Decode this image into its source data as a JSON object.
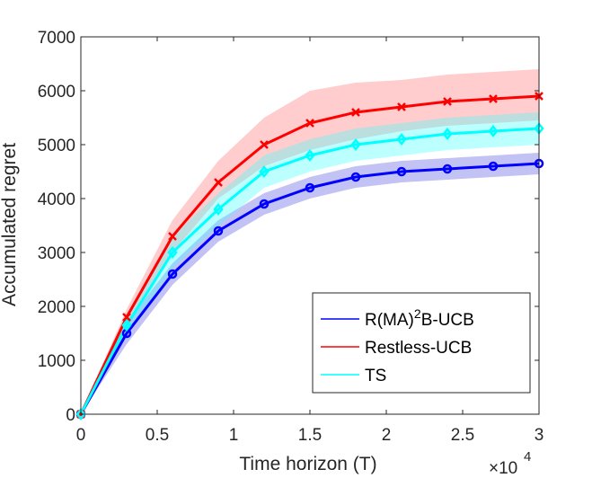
{
  "chart_data": {
    "type": "line",
    "xlabel": "Time horizon (T)",
    "ylabel": "Accumulated regret",
    "x_exponent_base": "×10",
    "x_exponent_power": "4",
    "x_ticks": [
      "0",
      "0.5",
      "1",
      "1.5",
      "2",
      "2.5",
      "3"
    ],
    "y_ticks": [
      "0",
      "1000",
      "2000",
      "3000",
      "4000",
      "5000",
      "6000",
      "7000"
    ],
    "xlim": [
      0,
      30000
    ],
    "ylim": [
      0,
      7000
    ],
    "grid": false,
    "legend_position": "bottom-right",
    "x": [
      0,
      3000,
      6000,
      9000,
      12000,
      15000,
      18000,
      21000,
      24000,
      27000,
      30000
    ],
    "series": [
      {
        "name": "R(MA)²B-UCB",
        "legend_main": "R(MA)",
        "legend_sup": "2",
        "legend_tail": "B-UCB",
        "color": "#0000ff",
        "band_color": "#5050e0",
        "marker": "circle",
        "values": [
          0,
          1500,
          2600,
          3400,
          3900,
          4200,
          4400,
          4500,
          4550,
          4600,
          4650
        ],
        "lower": [
          0,
          1300,
          2400,
          3200,
          3700,
          4000,
          4200,
          4300,
          4350,
          4400,
          4450
        ],
        "upper": [
          0,
          1700,
          2800,
          3600,
          4100,
          4400,
          4600,
          4700,
          4750,
          4800,
          4850
        ]
      },
      {
        "name": "Restless-UCB",
        "legend_main": "Restless-UCB",
        "color": "#ff0000",
        "band_color": "#ff7070",
        "marker": "x",
        "values": [
          0,
          1800,
          3300,
          4300,
          5000,
          5400,
          5600,
          5700,
          5800,
          5850,
          5900
        ],
        "lower": [
          0,
          1600,
          3000,
          4000,
          4600,
          4900,
          5100,
          5250,
          5350,
          5400,
          5450
        ],
        "upper": [
          0,
          1950,
          3600,
          4700,
          5500,
          6000,
          6150,
          6200,
          6300,
          6350,
          6400
        ]
      },
      {
        "name": "TS",
        "legend_main": "TS",
        "color": "#00ffff",
        "band_color": "#40ffff",
        "marker": "diamond",
        "values": [
          0,
          1650,
          3000,
          3800,
          4500,
          4800,
          5000,
          5100,
          5200,
          5250,
          5300
        ],
        "lower": [
          0,
          1450,
          2700,
          3500,
          4200,
          4500,
          4700,
          4800,
          4900,
          4950,
          5000
        ],
        "upper": [
          0,
          1850,
          3300,
          4100,
          4800,
          5100,
          5300,
          5400,
          5500,
          5550,
          5600
        ]
      }
    ]
  }
}
